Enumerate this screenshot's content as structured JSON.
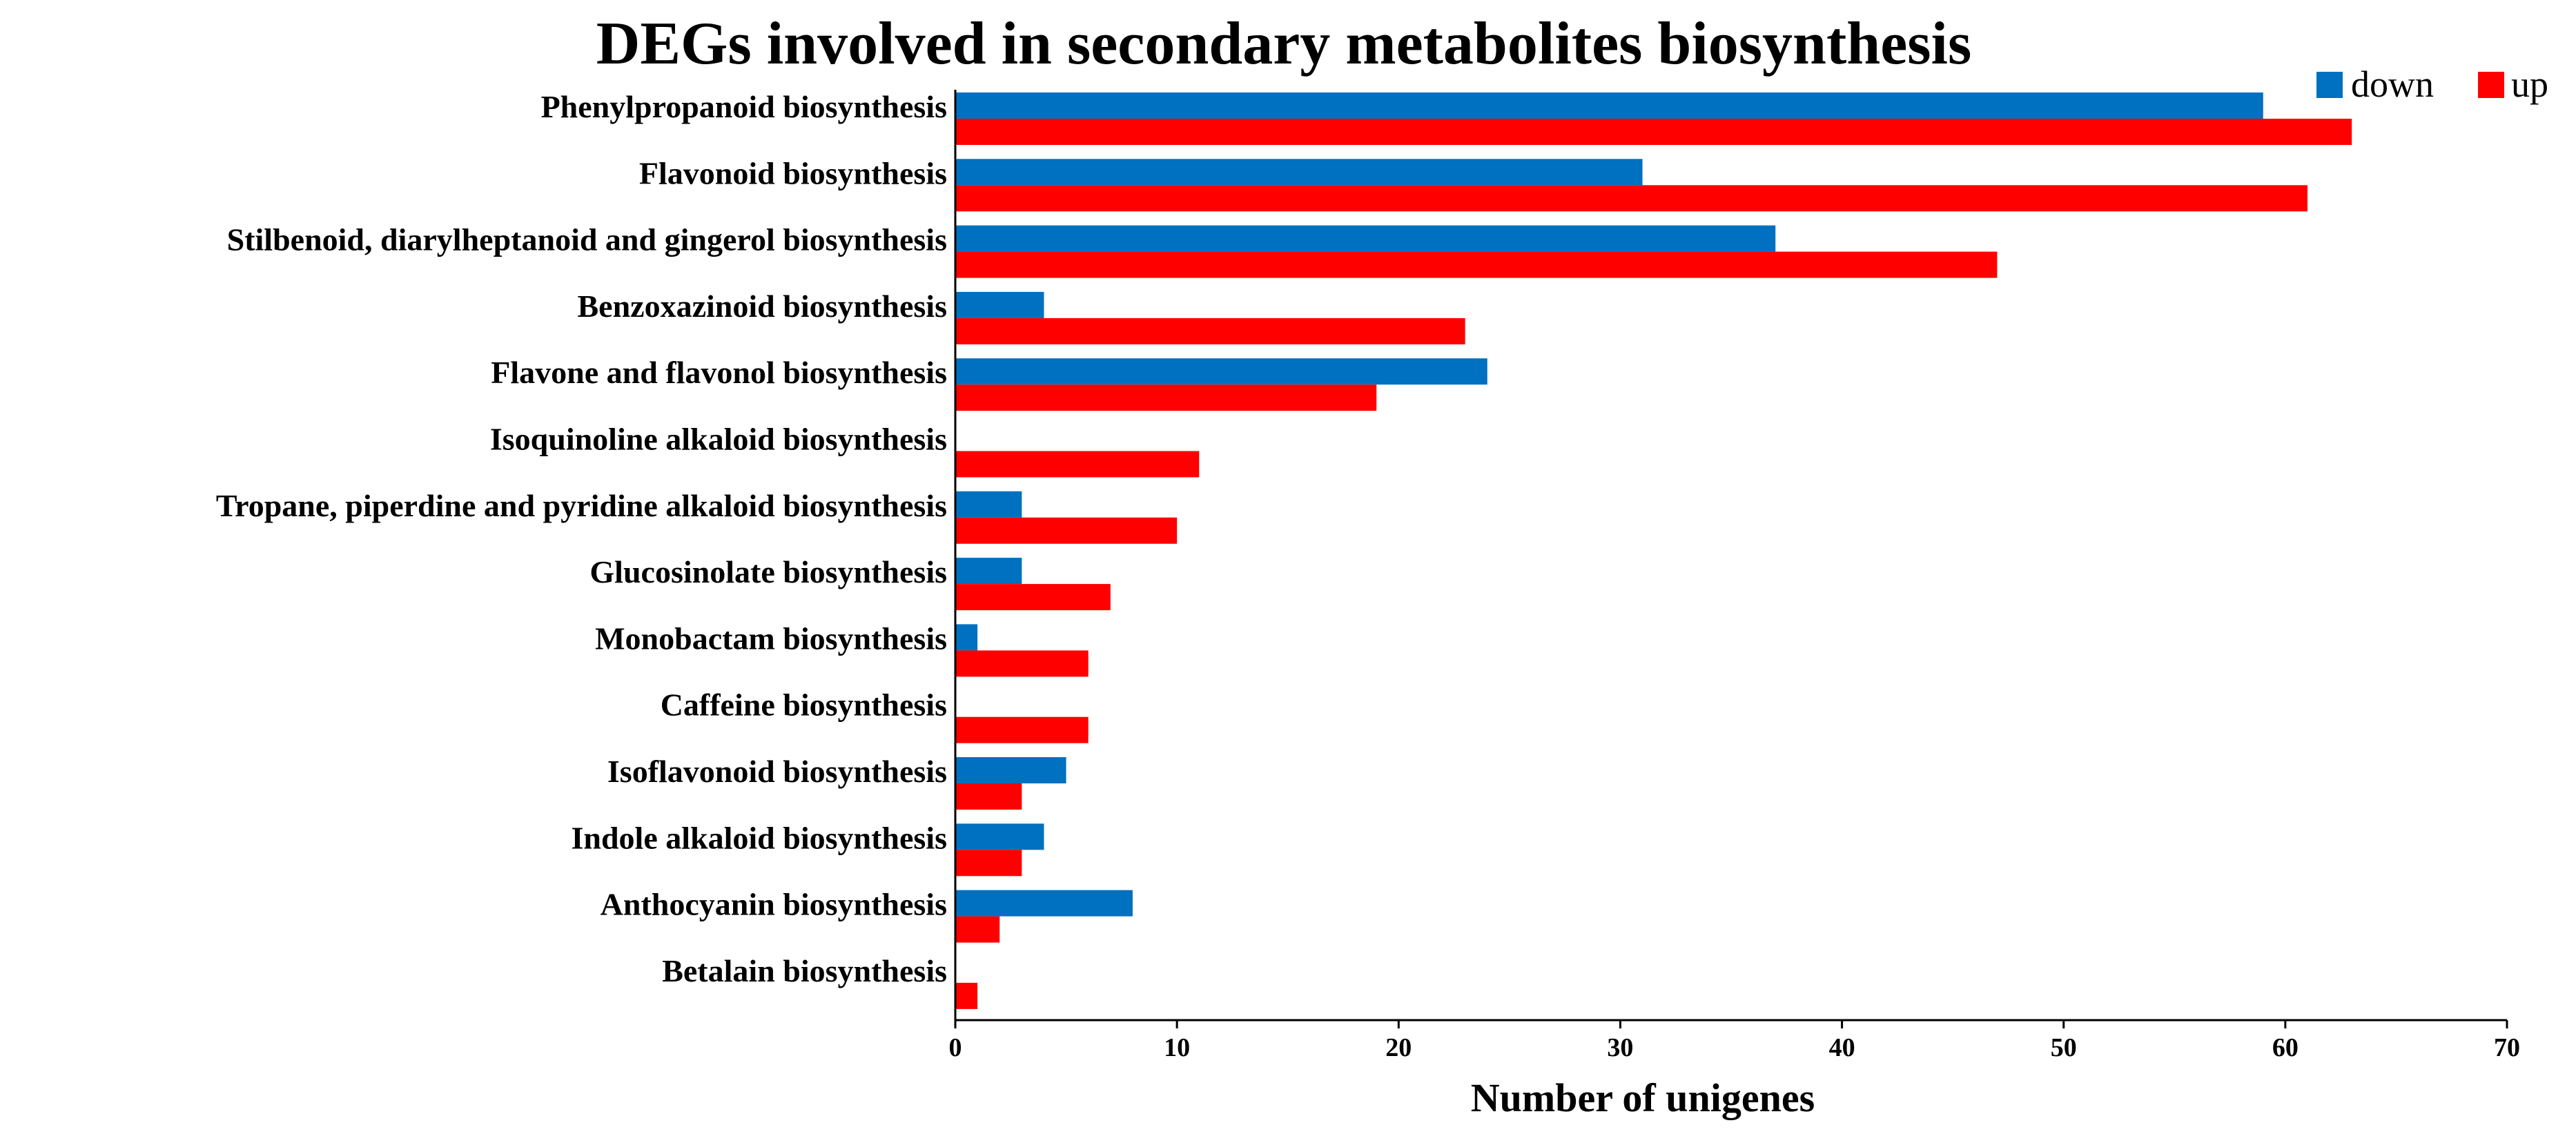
{
  "chart_data": {
    "type": "bar",
    "orientation": "horizontal",
    "title": "DEGs involved in secondary metabolites biosynthesis",
    "xlabel": "Number of unigenes",
    "ylabel": "",
    "xlim": [
      0,
      70
    ],
    "xticks": [
      0,
      10,
      20,
      30,
      40,
      50,
      60,
      70
    ],
    "legend_position": "top-right",
    "grid": false,
    "categories": [
      "Phenylpropanoid biosynthesis",
      "Flavonoid biosynthesis",
      "Stilbenoid, diarylheptanoid and gingerol biosynthesis",
      "Benzoxazinoid biosynthesis",
      "Flavone and flavonol biosynthesis",
      "Isoquinoline alkaloid biosynthesis",
      "Tropane, piperdine and pyridine alkaloid biosynthesis",
      "Glucosinolate biosynthesis",
      "Monobactam biosynthesis",
      "Caffeine biosynthesis",
      "Isoflavonoid biosynthesis",
      "Indole alkaloid biosynthesis",
      "Anthocyanin biosynthesis",
      "Betalain biosynthesis"
    ],
    "series": [
      {
        "name": "down",
        "color": "#0070C0",
        "values": [
          59,
          31,
          37,
          4,
          24,
          0,
          3,
          3,
          1,
          0,
          5,
          4,
          8,
          0
        ]
      },
      {
        "name": "up",
        "color": "#FF0000",
        "values": [
          63,
          61,
          47,
          23,
          19,
          11,
          10,
          7,
          6,
          6,
          3,
          3,
          2,
          1
        ]
      }
    ]
  }
}
